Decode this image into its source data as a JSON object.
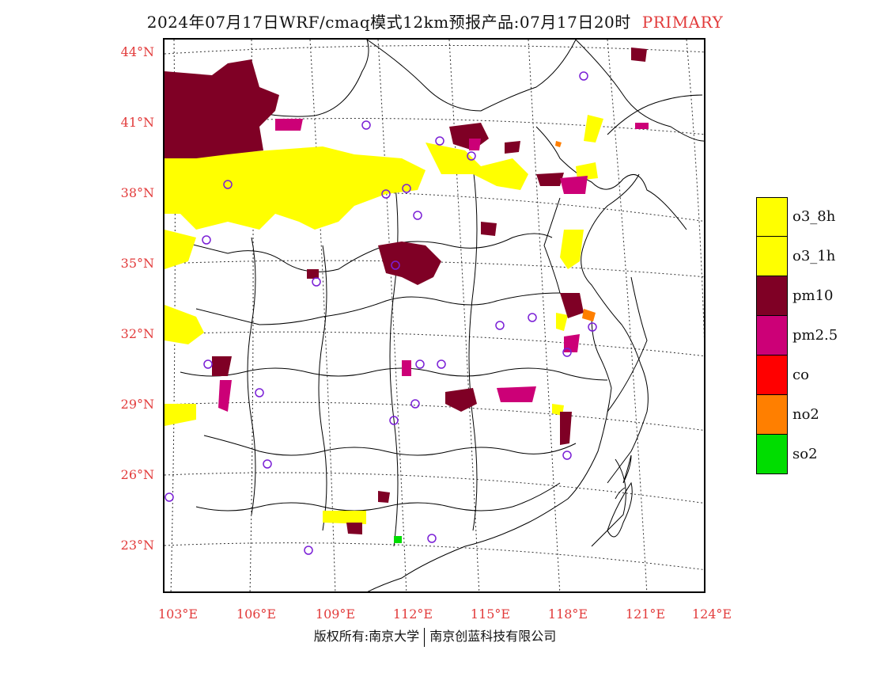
{
  "header": {
    "title": "2024年07月17日WRF/cmaq模式12km预报产品:07月17日20时",
    "tag": "PRIMARY"
  },
  "axes": {
    "lat_labels": [
      "44°N",
      "41°N",
      "38°N",
      "35°N",
      "32°N",
      "29°N",
      "26°N",
      "23°N"
    ],
    "lon_labels": [
      "103°E",
      "106°E",
      "109°E",
      "112°E",
      "115°E",
      "118°E",
      "121°E",
      "124°E"
    ]
  },
  "legend": {
    "items": [
      {
        "label": "o3_8h",
        "color": "#ffff00"
      },
      {
        "label": "o3_1h",
        "color": "#ffff00"
      },
      {
        "label": "pm10",
        "color": "#7f0025"
      },
      {
        "label": "pm2.5",
        "color": "#cc0077"
      },
      {
        "label": "co",
        "color": "#ff0000"
      },
      {
        "label": "no2",
        "color": "#ff7f00"
      },
      {
        "label": "so2",
        "color": "#00dd00"
      }
    ]
  },
  "footer": {
    "left": "版权所有:南京大学",
    "right": "南京创蓝科技有限公司"
  },
  "colors": {
    "label_red": "#e23b3b",
    "station_ring": "#7a1fd6"
  }
}
